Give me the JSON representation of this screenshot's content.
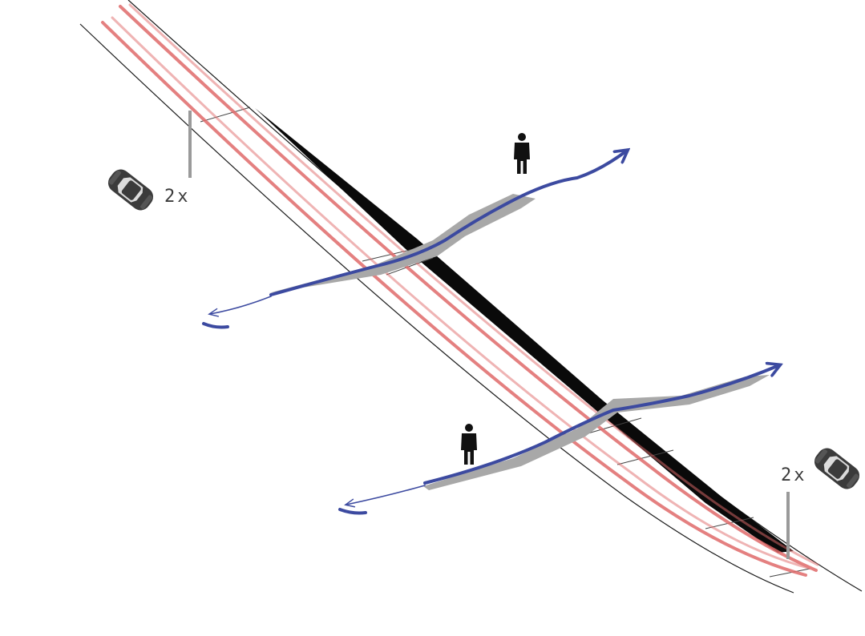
{
  "diagram": {
    "labels": {
      "lane_count_left": "2x",
      "lane_count_right": "2x"
    },
    "icons": {
      "vehicle": "car-top-view-icon",
      "person": "pedestrian-icon",
      "path": "crossing-path-arrow"
    },
    "colors": {
      "background": "#ffffff",
      "road_edge": "#1a1a1a",
      "median": "#0a0a0a",
      "traffic_lane": "#e06a6a",
      "crossing_path": "#3c4aa0",
      "crossing_shadow": "#a8a8a8",
      "marker_line": "#9a9a9a",
      "car": "#3b3b3b",
      "person": "#111111"
    }
  }
}
